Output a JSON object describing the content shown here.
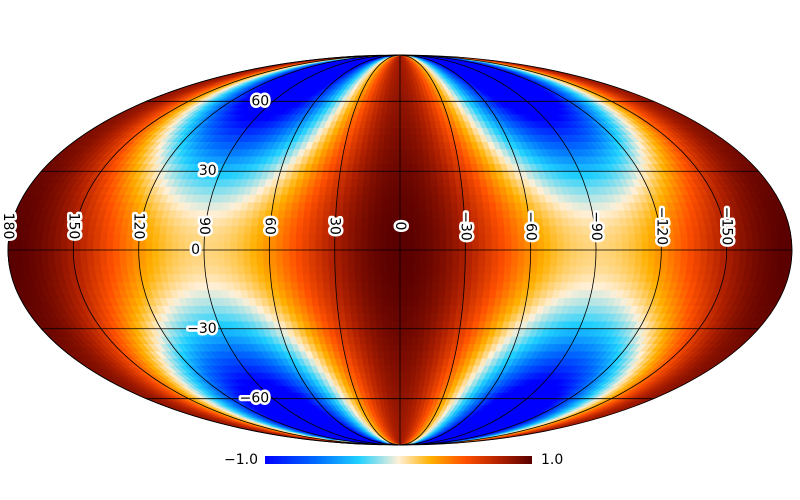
{
  "map": {
    "projection": "mollweide",
    "meridians": [
      180,
      150,
      120,
      90,
      60,
      30,
      0,
      {
        "value": -30,
        "label": "−30"
      },
      {
        "value": -60,
        "label": "−60"
      },
      {
        "value": -90,
        "label": "−90"
      },
      {
        "value": -120,
        "label": "−120"
      },
      {
        "value": -150,
        "label": "−150"
      }
    ],
    "parallels": [
      60,
      30,
      0,
      {
        "value": -30,
        "label": "−30"
      },
      {
        "value": -60,
        "label": "−60"
      }
    ]
  },
  "colorbar": {
    "min": {
      "value": -1.0,
      "label": "−1.0"
    },
    "max": {
      "value": 1.0,
      "label": "1.0"
    }
  }
}
